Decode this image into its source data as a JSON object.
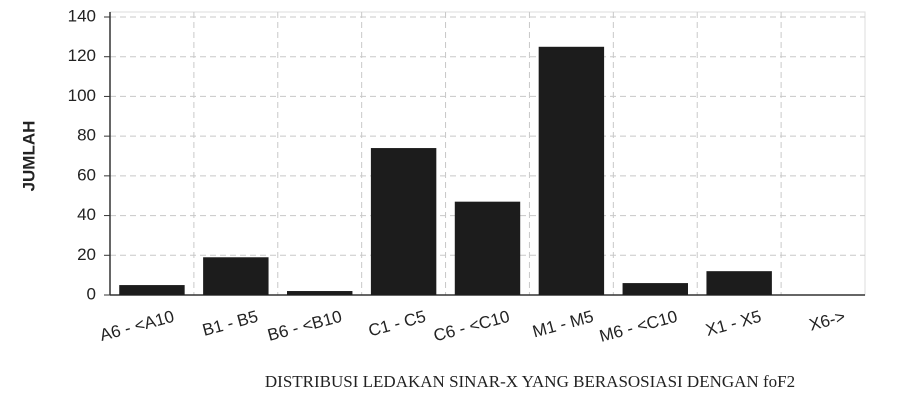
{
  "chart_data": {
    "type": "bar",
    "caption": "DISTRIBUSI LEDAKAN SINAR-X YANG BERASOSIASI DENGAN foF2",
    "y_label": "JUMLAH",
    "categories": [
      "A6 - <A10",
      "B1 - B5",
      "B6 - <B10",
      "C1 - C5",
      "C6 - <C10",
      "M1 - M5",
      "M6 - <C10",
      "X1 - X5",
      "X6->"
    ],
    "values": [
      5,
      19,
      2,
      74,
      47,
      125,
      6,
      12,
      0
    ],
    "color": "#1c1c1c",
    "ylim": [
      0,
      140
    ],
    "yticks": [
      0,
      20,
      40,
      60,
      80,
      100,
      120,
      140
    ],
    "grid": true
  }
}
